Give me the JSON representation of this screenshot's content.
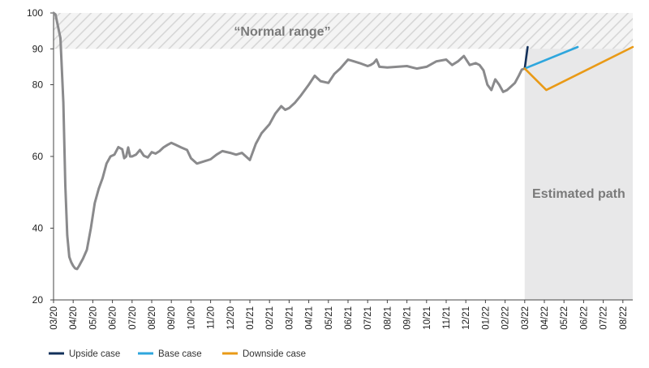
{
  "chart_data": {
    "type": "line",
    "title": "",
    "xlabel": "",
    "ylabel": "",
    "ylim": [
      20,
      100
    ],
    "y_ticks": [
      20,
      40,
      60,
      80,
      90,
      100
    ],
    "x_ticks": [
      "03/20",
      "04/20",
      "05/20",
      "06/20",
      "07/20",
      "08/20",
      "09/20",
      "10/20",
      "11/20",
      "12/20",
      "01/21",
      "02/21",
      "03/21",
      "04/21",
      "05/21",
      "06/21",
      "07/21",
      "08/21",
      "09/21",
      "10/21",
      "11/21",
      "12/21",
      "01/22",
      "02/22",
      "03/22",
      "04/22",
      "05/22",
      "06/22",
      "07/22",
      "08/22"
    ],
    "grid": false,
    "legend_position": "bottom-left",
    "normal_range": {
      "label": "“Normal range”",
      "from": 90,
      "to": 100
    },
    "estimated_region": {
      "label": "Estimated path",
      "start_month": 24.0,
      "end_month": 30.0
    },
    "series": [
      {
        "name": "",
        "color": "#8a8a8c",
        "x": [
          0,
          0.1,
          0.2,
          0.35,
          0.5,
          0.6,
          0.7,
          0.8,
          0.9,
          1.0,
          1.1,
          1.2,
          1.3,
          1.4,
          1.5,
          1.7,
          1.9,
          2.1,
          2.3,
          2.5,
          2.7,
          2.9,
          3.1,
          3.3,
          3.5,
          3.6,
          3.7,
          3.8,
          3.9,
          4.0,
          4.2,
          4.4,
          4.6,
          4.8,
          5.0,
          5.2,
          5.4,
          5.6,
          5.8,
          6.0,
          6.2,
          6.5,
          6.8,
          7.0,
          7.3,
          7.6,
          8.0,
          8.3,
          8.6,
          9.0,
          9.3,
          9.6,
          10.0,
          10.3,
          10.6,
          11.0,
          11.3,
          11.6,
          11.8,
          12.0,
          12.3,
          12.6,
          13.0,
          13.3,
          13.6,
          14.0,
          14.3,
          14.6,
          15.0,
          15.3,
          15.6,
          16.0,
          16.15,
          16.3,
          16.45,
          16.6,
          17.0,
          17.5,
          18.0,
          18.5,
          19.0,
          19.5,
          20.0,
          20.3,
          20.6,
          20.9,
          21.2,
          21.5,
          21.7,
          21.9,
          22.1,
          22.3,
          22.5,
          22.7,
          22.9,
          23.1,
          23.3,
          23.5,
          23.7,
          23.85,
          24.0
        ],
        "y": [
          100,
          99.6,
          97,
          93,
          75,
          52,
          38,
          32,
          30.5,
          29.5,
          28.8,
          28.6,
          29.5,
          30.5,
          31.5,
          34,
          40,
          47,
          51,
          54,
          58,
          60,
          60.5,
          62.6,
          62,
          59.5,
          60,
          62.5,
          60,
          60,
          60.5,
          61.8,
          60.2,
          59.7,
          61.2,
          60.8,
          61.5,
          62.5,
          63.2,
          63.8,
          63.3,
          62.5,
          61.8,
          59.5,
          58,
          58.5,
          59.2,
          60.5,
          61.5,
          61,
          60.5,
          61,
          59,
          63.5,
          66.5,
          69,
          72,
          74,
          73,
          73.5,
          75,
          77,
          80,
          82.5,
          81,
          80.5,
          83,
          84.5,
          87,
          86.5,
          86,
          85.2,
          85.5,
          86,
          87,
          85,
          84.8,
          85,
          85.2,
          84.5,
          85,
          86.5,
          87,
          85.5,
          86.5,
          88,
          85.5,
          86,
          85.5,
          84,
          80,
          78.5,
          81.5,
          80,
          78,
          78.5,
          79.5,
          80.5,
          82.5,
          84.2,
          84.5
        ]
      },
      {
        "name": "Upside case",
        "color": "#12305a",
        "x": [
          24.0,
          24.15
        ],
        "y": [
          84.5,
          90.5
        ]
      },
      {
        "name": "Base case",
        "color": "#2ea6dd",
        "x": [
          24.0,
          26.7
        ],
        "y": [
          84.5,
          90.5
        ]
      },
      {
        "name": "Downside case",
        "color": "#e99a17",
        "x": [
          24.0,
          25.1,
          29.5
        ],
        "y": [
          84.5,
          78.5,
          90.5
        ]
      }
    ],
    "legend": [
      {
        "label": "Upside case",
        "color": "#12305a"
      },
      {
        "label": "Base case",
        "color": "#2ea6dd"
      },
      {
        "label": "Downside case",
        "color": "#e99a17"
      }
    ]
  }
}
